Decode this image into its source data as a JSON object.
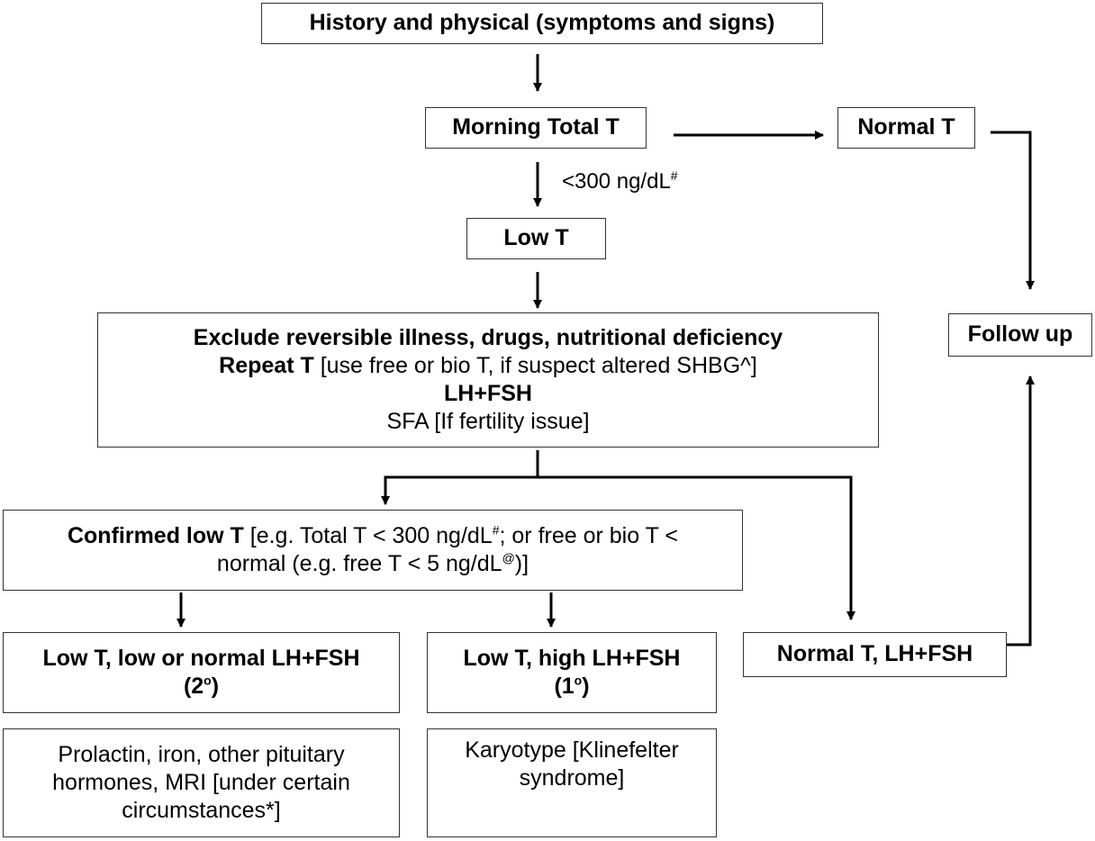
{
  "nodes": {
    "history": "History and physical (symptoms and signs)",
    "morning_total_t": "Morning Total T",
    "normal_t": "Normal T",
    "low_t": "Low T",
    "follow_up": "Follow up",
    "exclude": {
      "line1": "Exclude reversible illness, drugs, nutritional deficiency",
      "line2_bold": "Repeat T",
      "line2_rest": " [use free or bio T, if suspect altered SHBG^]",
      "line3": "LH+FSH",
      "line4": "SFA [If fertility issue]"
    },
    "confirmed": {
      "bold": "Confirmed low T",
      "text1": " [e.g. Total T < 300 ng/dL",
      "sup1": "#",
      "text2": "; or free or bio T <",
      "text3": "normal (e.g. free T < 5 ng/dL",
      "sup2": "@",
      "text4": ")]"
    },
    "secondary": {
      "line1": "Low T, low or normal LH+FSH",
      "line2": "(2",
      "sup": "o",
      "close": ")"
    },
    "primary": {
      "line1": "Low T, high LH+FSH",
      "line2": "(1",
      "sup": "o",
      "close": ")"
    },
    "normal_t_lh": "Normal T, LH+FSH",
    "secondary_tests": "Prolactin, iron, other pituitary hormones, MRI [under certain circumstances*]",
    "primary_tests": "Karyotype [Klinefelter syndrome]"
  },
  "edge_labels": {
    "threshold": "<300 ng/dL",
    "threshold_sup": "#"
  }
}
